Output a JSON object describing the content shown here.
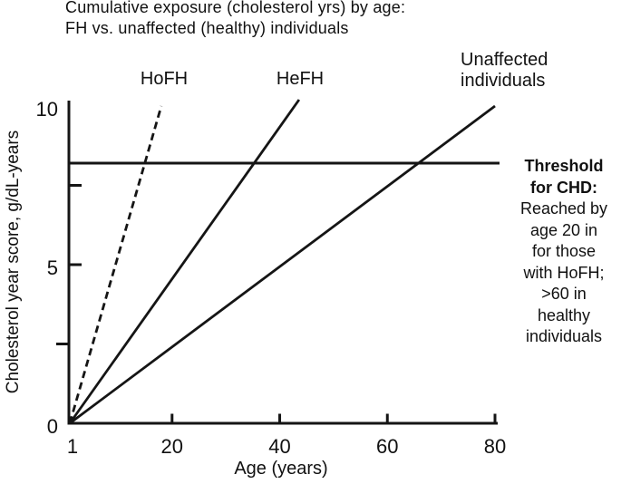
{
  "chart_data": {
    "type": "line",
    "title": "Cumulative exposure (cholesterol yrs) by age:",
    "subtitle": "FH vs. unaffected (healthy) individuals",
    "xlabel": "Age (years)",
    "ylabel": "Cholesterol year score, g/dL-years",
    "xlim": [
      1,
      80
    ],
    "ylim": [
      0,
      10
    ],
    "x_ticks": [
      1,
      20,
      40,
      60,
      80
    ],
    "y_ticks": [
      0,
      5,
      10
    ],
    "y_minor_ticks": [
      2.5,
      7.5
    ],
    "grid": false,
    "series": [
      {
        "name": "HoFH",
        "style": "dashed",
        "points": [
          [
            1,
            0
          ],
          [
            18,
            10
          ]
        ]
      },
      {
        "name": "HeFH",
        "style": "solid",
        "points": [
          [
            1,
            0
          ],
          [
            43.6,
            10.2
          ]
        ]
      },
      {
        "name": "Unaffected individuals",
        "style": "solid",
        "points": [
          [
            1,
            0
          ],
          [
            80,
            10
          ]
        ]
      }
    ],
    "threshold_line": {
      "orientation": "horizontal",
      "value": 8.2
    }
  },
  "series_labels": {
    "hofh": "HoFH",
    "hefh": "HeFH",
    "unaffected": "Unaffected\nindividuals"
  },
  "annotation": {
    "bold_lines": [
      "Threshold",
      "for CHD:"
    ],
    "lines": [
      "Reached by",
      "age 20 in",
      "for those",
      "with HoFH;",
      ">60 in",
      "healthy",
      "individuals"
    ]
  },
  "colors": {
    "ink": "#151515",
    "background": "#ffffff"
  }
}
